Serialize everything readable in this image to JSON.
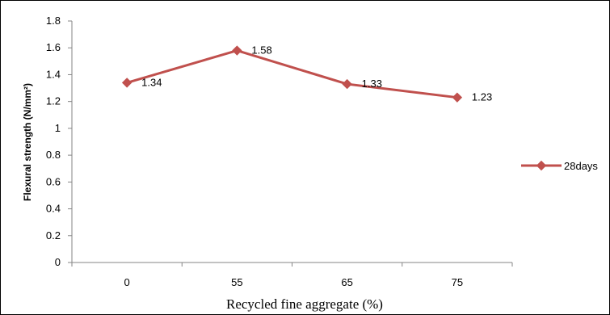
{
  "chart_data": {
    "type": "line",
    "title": "",
    "xlabel": "Recycled fine aggregate (%)",
    "ylabel": "Flexural strength (N/mm²)",
    "categories": [
      "0",
      "55",
      "65",
      "75"
    ],
    "series": [
      {
        "name": "28days",
        "values": [
          1.34,
          1.58,
          1.33,
          1.23
        ],
        "color": "#c0504d",
        "marker": "diamond"
      }
    ],
    "data_labels": [
      "1.34",
      "1.58",
      "1.33",
      "1.23"
    ],
    "ylim": [
      0,
      1.8
    ],
    "yticks": [
      0,
      0.2,
      0.4,
      0.6,
      0.8,
      1,
      1.2,
      1.4,
      1.6,
      1.8
    ],
    "ytick_labels": [
      "0",
      "0.2",
      "0.4",
      "0.6",
      "0.8",
      "1",
      "1.2",
      "1.4",
      "1.6",
      "1.8"
    ],
    "grid": false,
    "legend_position": "right"
  }
}
